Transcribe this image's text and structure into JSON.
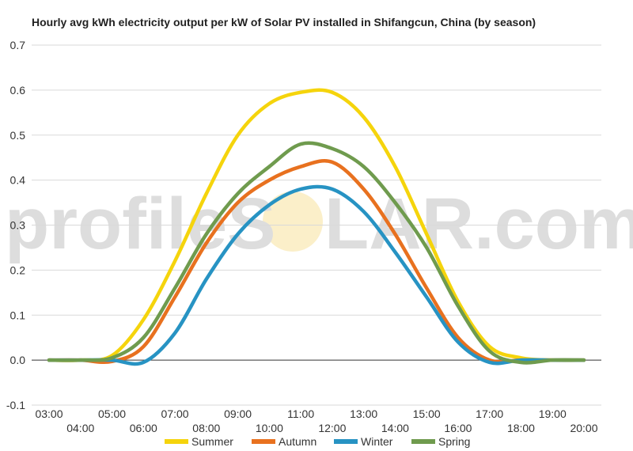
{
  "chart_data": {
    "type": "line",
    "title": "Hourly avg kWh electricity output per kW of Solar PV installed in Shifangcun, China (by season)",
    "xlabel": "",
    "ylabel": "",
    "ylim": [
      -0.1,
      0.7
    ],
    "yticks": [
      "0.7",
      "0.6",
      "0.5",
      "0.4",
      "0.3",
      "0.2",
      "0.1",
      "0.0",
      "-0.1"
    ],
    "ytick_values": [
      0.7,
      0.6,
      0.5,
      0.4,
      0.3,
      0.2,
      0.1,
      0.0,
      -0.1
    ],
    "xlim": [
      3,
      20
    ],
    "xticks": [
      "03:00",
      "04:00",
      "05:00",
      "06:00",
      "07:00",
      "08:00",
      "09:00",
      "10:00",
      "11:00",
      "12:00",
      "13:00",
      "14:00",
      "15:00",
      "16:00",
      "17:00",
      "18:00",
      "19:00",
      "20:00"
    ],
    "x": [
      3,
      4,
      5,
      6,
      7,
      8,
      9,
      10,
      11,
      12,
      13,
      14,
      15,
      16,
      17,
      18,
      19,
      20
    ],
    "grid": true,
    "legend": "bottom-center",
    "series": [
      {
        "name": "Summer",
        "color": "#f5d40c",
        "values": [
          0.0,
          0.0,
          0.01,
          0.09,
          0.22,
          0.37,
          0.5,
          0.57,
          0.595,
          0.595,
          0.54,
          0.43,
          0.28,
          0.13,
          0.03,
          0.005,
          0.0,
          0.0
        ]
      },
      {
        "name": "Autumn",
        "color": "#e8711f",
        "values": [
          0.0,
          0.0,
          -0.003,
          0.03,
          0.14,
          0.26,
          0.35,
          0.4,
          0.43,
          0.44,
          0.38,
          0.28,
          0.16,
          0.05,
          0.0,
          0.0,
          0.0,
          0.0
        ]
      },
      {
        "name": "Winter",
        "color": "#2793c3",
        "values": [
          0.0,
          0.0,
          0.0,
          -0.005,
          0.06,
          0.18,
          0.28,
          0.345,
          0.38,
          0.38,
          0.33,
          0.24,
          0.14,
          0.04,
          -0.005,
          0.0,
          0.0,
          0.0
        ]
      },
      {
        "name": "Spring",
        "color": "#6f9b4e",
        "values": [
          0.0,
          0.0,
          0.005,
          0.05,
          0.16,
          0.28,
          0.37,
          0.43,
          0.48,
          0.47,
          0.43,
          0.35,
          0.25,
          0.12,
          0.02,
          -0.005,
          0.0,
          0.0
        ]
      }
    ]
  },
  "watermark": {
    "left": "profileS",
    "right": "LAR.com"
  }
}
